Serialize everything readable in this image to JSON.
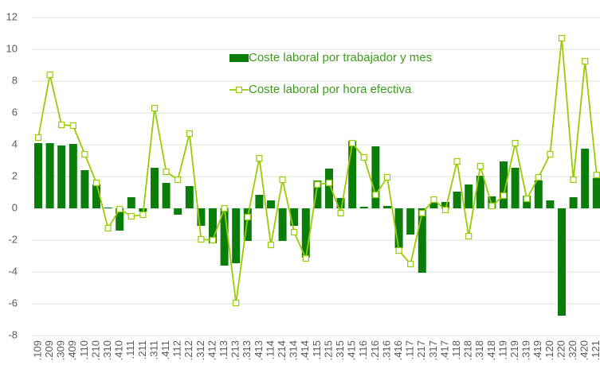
{
  "chart_data": {
    "type": "bar-line",
    "categories": [
      ".109",
      ".209",
      ".309",
      ".409",
      ".110",
      ".210",
      ".310",
      ".410",
      ".111",
      ".211",
      ".311",
      ".411",
      ".112",
      ".212",
      ".312",
      ".412",
      ".113",
      ".213",
      ".313",
      ".413",
      ".114",
      ".214",
      ".314",
      ".414",
      ".115",
      ".215",
      ".315",
      ".415",
      ".116",
      ".216",
      ".316",
      ".416",
      ".117",
      ".217",
      ".317",
      ".417",
      ".118",
      ".218",
      ".318",
      ".418",
      ".119",
      ".219",
      ".319",
      ".419",
      ".120",
      ".220",
      ".320",
      ".420",
      ".121"
    ],
    "series": [
      {
        "name": "Coste laboral por trabajador y mes",
        "type": "bar",
        "color": "#0a7d0a",
        "values": [
          4.1,
          4.1,
          3.95,
          4.05,
          2.4,
          1.5,
          0.05,
          -1.4,
          0.7,
          -0.2,
          2.55,
          1.6,
          -0.4,
          1.4,
          -1.1,
          -2.2,
          -3.6,
          -3.45,
          -2.05,
          0.85,
          0.5,
          -2.05,
          -1.1,
          -3.1,
          1.75,
          2.5,
          0.65,
          4.25,
          0.1,
          3.9,
          0.15,
          -2.5,
          -1.65,
          -4.05,
          0.35,
          0.4,
          1.05,
          1.5,
          2.05,
          0.75,
          2.95,
          2.55,
          0.8,
          1.75,
          0.5,
          -6.75,
          0.7,
          3.75,
          1.9
        ]
      },
      {
        "name": "Coste laboral por hora efectiva",
        "type": "line",
        "color": "#99cc00",
        "values": [
          4.45,
          8.4,
          5.25,
          5.2,
          3.4,
          1.6,
          -1.25,
          -0.05,
          -0.5,
          -0.4,
          6.3,
          2.3,
          1.8,
          4.7,
          -1.95,
          -2.0,
          0.0,
          -5.95,
          -0.55,
          3.15,
          -2.3,
          1.8,
          -1.5,
          -3.15,
          1.5,
          1.6,
          -0.3,
          4.1,
          3.2,
          0.85,
          1.95,
          -2.65,
          -3.5,
          -0.3,
          0.55,
          -0.1,
          2.95,
          -1.75,
          2.65,
          0.15,
          0.8,
          4.1,
          0.6,
          1.95,
          3.4,
          10.7,
          1.8,
          9.25,
          2.1
        ]
      }
    ],
    "ylim": [
      -8,
      12
    ],
    "yticks": [
      -8,
      -6,
      -4,
      -2,
      0,
      2,
      4,
      6,
      8,
      10,
      12
    ],
    "grid": true,
    "legend": "top-center"
  }
}
